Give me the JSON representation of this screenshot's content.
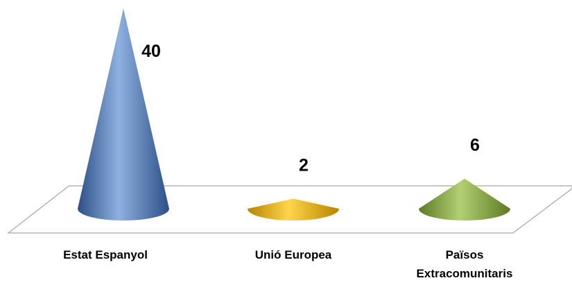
{
  "chart_data": {
    "type": "bar",
    "shape": "3d-cone",
    "categories": [
      [
        "Estat Espanyol"
      ],
      [
        "Unió Europea"
      ],
      [
        "Països",
        "Extracomunitaris"
      ]
    ],
    "values": [
      40,
      2,
      6
    ],
    "data_labels": [
      "40",
      "2",
      "6"
    ],
    "title": "",
    "xlabel": "",
    "ylabel": "",
    "ylim": [
      0,
      40
    ],
    "grid": false,
    "legend": "none",
    "colors": {
      "series_base": [
        "#4a75b5",
        "#e0a800",
        "#7f9e3a"
      ],
      "series_dark": [
        "#2c4f87",
        "#b88400",
        "#5d7a24"
      ],
      "series_light": [
        "#8fb1e0",
        "#ffd54a",
        "#b3cf73"
      ],
      "floor_stroke": "#a6a6a6"
    }
  }
}
